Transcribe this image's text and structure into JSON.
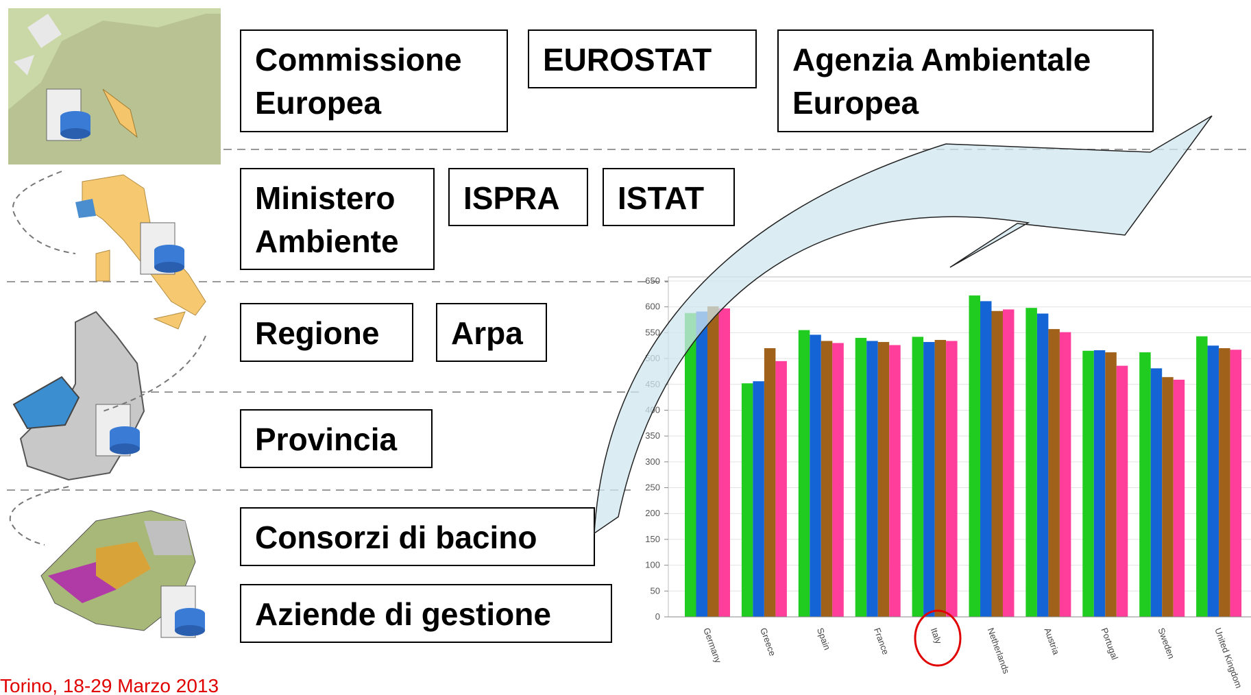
{
  "boxes": [
    {
      "lines": [
        "Commissione",
        "Europea"
      ]
    },
    {
      "lines": [
        "EUROSTAT"
      ]
    },
    {
      "lines": [
        "Agenzia Ambientale",
        "Europea"
      ]
    },
    {
      "lines": [
        "Ministero",
        "Ambiente"
      ]
    },
    {
      "lines": [
        "ISPRA"
      ]
    },
    {
      "lines": [
        "ISTAT"
      ]
    },
    {
      "lines": [
        "Regione"
      ]
    },
    {
      "lines": [
        "Arpa"
      ]
    },
    {
      "lines": [
        "Provincia"
      ]
    },
    {
      "lines": [
        "Consorzi di bacino"
      ]
    },
    {
      "lines": [
        "Aziende di gestione"
      ]
    }
  ],
  "footer": "Torino, 18-29 Marzo 2013",
  "chart_data": {
    "type": "bar",
    "categories": [
      "Germany",
      "Greece",
      "Spain",
      "France",
      "Italy",
      "Netherlands",
      "Austria",
      "Portugal",
      "Sweden",
      "United Kingdom"
    ],
    "series": [
      {
        "color": "#1fcc1f",
        "values": [
          588,
          452,
          555,
          540,
          542,
          622,
          598,
          515,
          512,
          543
        ]
      },
      {
        "color": "#1564d6",
        "values": [
          591,
          456,
          546,
          534,
          532,
          611,
          587,
          516,
          481,
          525
        ]
      },
      {
        "color": "#a0621a",
        "values": [
          601,
          520,
          534,
          532,
          536,
          592,
          557,
          512,
          464,
          520
        ]
      },
      {
        "color": "#ff3d9a",
        "values": [
          597,
          495,
          530,
          526,
          534,
          595,
          551,
          486,
          459,
          517
        ]
      }
    ],
    "ylim": [
      0,
      650
    ],
    "yticks": [
      0,
      50,
      100,
      150,
      200,
      250,
      300,
      350,
      400,
      450,
      500,
      550,
      600,
      650
    ],
    "grid": true
  }
}
